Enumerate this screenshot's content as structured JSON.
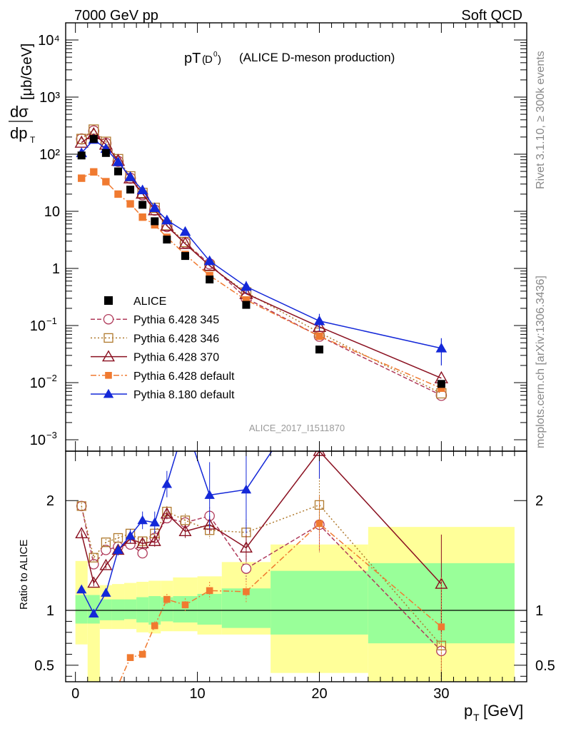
{
  "header": {
    "left": "7000 GeV pp",
    "right": "Soft QCD"
  },
  "side_labels": {
    "rivet": "Rivet 3.1.10, ≥ 300k events",
    "mcplots": "mcplots.cern.ch [arXiv:1306.3436]"
  },
  "chart_data": {
    "type": "line",
    "title_main": "pT",
    "title_sub": "D",
    "title_sup": "0",
    "title_rest": "(ALICE D-meson production)",
    "analysis_id": "ALICE_2017_I1511870",
    "ylabel_top": {
      "frac_num": "dσ",
      "frac_den": "dp",
      "frac_den_sub": "T",
      "unit": "[μb/GeV]"
    },
    "ylabel_ratio": "Ratio to ALICE",
    "xlabel": {
      "main": "p",
      "sub": "T",
      "unit": "[GeV]"
    },
    "x_ticks": [
      "0",
      "10",
      "20",
      "30"
    ],
    "y_ticks_main": [
      "10",
      "10",
      "10",
      "1",
      "10",
      "10²",
      "10³",
      "10⁴"
    ],
    "y_ticks_main_sup": [
      "−3",
      "−2",
      "−1",
      "",
      "",
      "",
      "",
      ""
    ],
    "y_ticks_ratio": [
      "0.5",
      "1",
      "2"
    ],
    "xlim": [
      -0.8,
      37
    ],
    "ylim_main_log10": [
      -3.2,
      4.3
    ],
    "ylim_ratio": [
      0.35,
      2.45
    ],
    "x_bins": [
      [
        0,
        1
      ],
      [
        1,
        2
      ],
      [
        2,
        3
      ],
      [
        3,
        4
      ],
      [
        4,
        5
      ],
      [
        5,
        6
      ],
      [
        6,
        7
      ],
      [
        7,
        8
      ],
      [
        8,
        10
      ],
      [
        10,
        12
      ],
      [
        12,
        16
      ],
      [
        16,
        24
      ],
      [
        24,
        36
      ]
    ],
    "x_centers": [
      0.5,
      1.5,
      2.5,
      3.5,
      4.5,
      5.5,
      6.5,
      7.5,
      9,
      11,
      14,
      20,
      30
    ],
    "alice": {
      "name": "ALICE",
      "values": [
        95,
        185,
        105,
        50,
        24,
        13,
        6.7,
        3.2,
        1.65,
        0.64,
        0.23,
        0.038,
        0.0095
      ],
      "stat_band_lo": [
        0.88,
        0.88,
        0.91,
        0.91,
        0.92,
        0.89,
        0.87,
        0.9,
        0.89,
        0.87,
        0.84,
        0.78,
        0.7
      ],
      "stat_band_hi": [
        1.14,
        1.14,
        1.1,
        1.1,
        1.1,
        1.12,
        1.13,
        1.12,
        1.13,
        1.15,
        1.2,
        1.36,
        1.43
      ],
      "tot_band_lo": [
        0.69,
        0.3,
        0.83,
        0.83,
        0.83,
        0.8,
        0.79,
        0.81,
        0.81,
        0.78,
        0.78,
        0.43,
        0.3
      ],
      "tot_band_hi": [
        1.45,
        1.21,
        1.23,
        1.24,
        1.25,
        1.26,
        1.27,
        1.27,
        1.3,
        1.31,
        1.44,
        1.6,
        1.76
      ]
    },
    "series": [
      {
        "name": "Pythia 6.428 345",
        "color": "#b03a5a",
        "marker": "open-circle",
        "dash": "6,3",
        "values": [
          185,
          255,
          155,
          75,
          38,
          19.5,
          10.5,
          5.4,
          2.8,
          1.2,
          0.3,
          0.065,
          0.006
        ],
        "ratio": [
          1.95,
          1.42,
          1.55,
          1.58,
          1.6,
          1.52,
          1.66,
          1.84,
          1.8,
          1.86,
          1.38,
          1.78,
          0.63
        ],
        "ratio_err": [
          0.03,
          0.03,
          0.03,
          0.03,
          0.04,
          0.04,
          0.05,
          0.05,
          0.06,
          0.08,
          0.12,
          0.25,
          0.35
        ]
      },
      {
        "name": "Pythia 6.428 346",
        "color": "#b07a2e",
        "marker": "open-square",
        "dash": "2,3",
        "values": [
          185,
          270,
          165,
          82,
          41,
          21,
          11.5,
          5.7,
          2.9,
          1.1,
          0.38,
          0.075,
          0.0065
        ],
        "ratio": [
          1.95,
          1.48,
          1.62,
          1.66,
          1.7,
          1.63,
          1.7,
          1.9,
          1.82,
          1.73,
          1.71,
          1.96,
          0.68
        ],
        "ratio_err": [
          0.03,
          0.03,
          0.03,
          0.03,
          0.04,
          0.04,
          0.05,
          0.05,
          0.06,
          0.08,
          0.12,
          0.25,
          0.35
        ]
      },
      {
        "name": "Pythia 6.428 370",
        "color": "#8a1020",
        "marker": "open-triangle",
        "dash": "",
        "values": [
          160,
          225,
          148,
          77,
          38,
          20.5,
          10.5,
          5.6,
          2.7,
          1.12,
          0.36,
          0.095,
          0.012
        ],
        "ratio": [
          1.7,
          1.25,
          1.41,
          1.55,
          1.65,
          1.61,
          1.63,
          1.88,
          1.72,
          1.78,
          1.57,
          2.45,
          1.24
        ],
        "ratio_err": [
          0.03,
          0.03,
          0.03,
          0.03,
          0.04,
          0.04,
          0.05,
          0.05,
          0.06,
          0.08,
          0.12,
          0.25,
          0.45
        ]
      },
      {
        "name": "Pythia 6.428 default",
        "color": "#f07a30",
        "marker": "filled-square",
        "dash": "8,3,2,3",
        "values": [
          38,
          49,
          33,
          20,
          13.5,
          7.9,
          5.8,
          3.5,
          1.75,
          0.75,
          0.28,
          0.065,
          0.008
        ],
        "ratio": [
          0.2,
          0.2,
          0.21,
          0.32,
          0.57,
          0.6,
          0.86,
          1.1,
          1.05,
          1.18,
          1.17,
          1.79,
          0.85
        ],
        "ratio_err": [
          0.01,
          0.01,
          0.01,
          0.02,
          0.03,
          0.03,
          0.04,
          0.05,
          0.06,
          0.08,
          0.1,
          0.25,
          0.45
        ]
      },
      {
        "name": "Pythia 8.180 default",
        "color": "#1428d8",
        "marker": "filled-triangle",
        "dash": "",
        "values": [
          105,
          180,
          125,
          73,
          40,
          23.5,
          11.5,
          7,
          4.4,
          1.35,
          0.48,
          0.12,
          0.04
        ],
        "ratio": [
          1.19,
          0.97,
          1.16,
          1.55,
          1.68,
          1.82,
          1.8,
          2.15,
          2.7,
          2.05,
          2.1,
          3.1,
          4.2
        ],
        "ratio_err": [
          0.03,
          0.03,
          0.03,
          0.05,
          0.06,
          0.08,
          0.1,
          0.12,
          0.15,
          0.3,
          0.4,
          0.9,
          1.5
        ],
        "main_err": [
          0,
          0,
          0,
          0,
          0,
          0,
          0,
          0,
          0,
          0.2,
          0.12,
          0.04,
          0.02
        ]
      }
    ],
    "grid": false,
    "legend_position": "lower-left"
  }
}
